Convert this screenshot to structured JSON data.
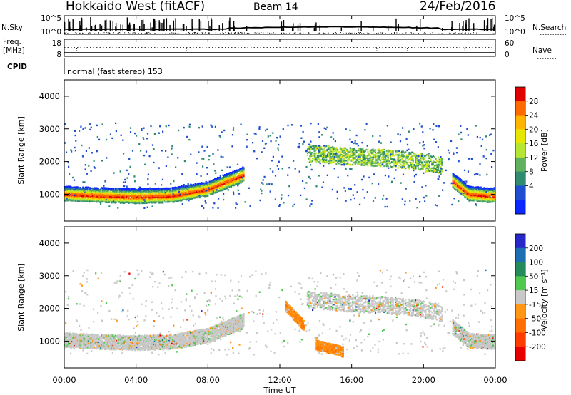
{
  "header": {
    "radar": "Hokkaido West (fitACF)",
    "beam": "Beam 14",
    "date": "24/Feb/2016"
  },
  "noise_panel": {
    "left_label": "N.Sky",
    "right_label": "N.Search",
    "left_ticks": [
      "10^5",
      "10^0"
    ],
    "right_ticks": [
      "10^5",
      "10^0"
    ]
  },
  "freq_panel": {
    "label_line1": "Freq.",
    "label_line2": "[MHz]",
    "left_ticks": [
      "18",
      "8"
    ],
    "right_label": "Nave",
    "right_ticks": [
      "60",
      "0"
    ]
  },
  "cpid_panel": {
    "label": "CPID",
    "mode_text": "normal (fast stereo) 153"
  },
  "chart_data": [
    {
      "type": "heatmap",
      "name": "power",
      "ylabel": "Slant Range [km]",
      "yticks": [
        1000,
        2000,
        3000,
        4000
      ],
      "ylim": [
        180,
        4500
      ],
      "xlim": [
        0,
        24
      ],
      "colorbar": {
        "label": "Power [dB]",
        "ticks": [
          "28",
          "24",
          "20",
          "16",
          "12",
          "8",
          "4"
        ],
        "colors": [
          "#e00000",
          "#ff6a00",
          "#ffb400",
          "#e6e600",
          "#b4e632",
          "#5fb05f",
          "#2f8c6e",
          "#1f4fd0",
          "#0a28ff"
        ]
      },
      "features": [
        {
          "desc": "band",
          "x": [
            0,
            2,
            4,
            6,
            8,
            10
          ],
          "y": [
            1000,
            950,
            920,
            950,
            1150,
            1600
          ]
        },
        {
          "desc": "band",
          "x": [
            21.6,
            22.5,
            23.5,
            24
          ],
          "y": [
            1400,
            1000,
            950,
            950
          ]
        },
        {
          "desc": "patch",
          "x": [
            13.5,
            15.5,
            17.5,
            19.5,
            21
          ],
          "y": [
            2300,
            2200,
            2150,
            2050,
            1900
          ]
        }
      ]
    },
    {
      "type": "heatmap",
      "name": "velocity",
      "ylabel": "Slant Range [km]",
      "yticks": [
        1000,
        2000,
        3000,
        4000
      ],
      "ylim": [
        180,
        4500
      ],
      "xlim": [
        0,
        24
      ],
      "colorbar": {
        "label": "Velocity [m s⁻¹]",
        "ticks": [
          "200",
          "100",
          "50",
          "15",
          "-15",
          "-50",
          "-100",
          "-200"
        ],
        "colors": [
          "#2828c8",
          "#1e6eb4",
          "#238c5a",
          "#50c850",
          "#c8c8c8",
          "#ff9614",
          "#ff6e00",
          "#ff3c00",
          "#e60000"
        ]
      },
      "features": [
        {
          "desc": "band",
          "x": [
            0,
            2,
            4,
            6,
            8,
            10
          ],
          "y": [
            1000,
            950,
            920,
            950,
            1150,
            1600
          ]
        },
        {
          "desc": "band",
          "x": [
            21.6,
            22.5,
            23.5,
            24
          ],
          "y": [
            1400,
            1000,
            950,
            950
          ]
        },
        {
          "desc": "patch",
          "x": [
            13.5,
            15.5,
            17.5,
            19.5,
            21
          ],
          "y": [
            2300,
            2200,
            2150,
            2050,
            1900
          ]
        },
        {
          "desc": "negative-velocity",
          "x": [
            12.3,
            12.8,
            13.3
          ],
          "y": [
            2100,
            1800,
            1500
          ]
        },
        {
          "desc": "negative-velocity",
          "x": [
            14,
            14.8,
            15.5
          ],
          "y": [
            900,
            800,
            700
          ]
        }
      ]
    }
  ],
  "time_axis": {
    "ticks": [
      "00:00",
      "04:00",
      "08:00",
      "12:00",
      "16:00",
      "20:00",
      "00:00"
    ],
    "label": "Time UT"
  }
}
